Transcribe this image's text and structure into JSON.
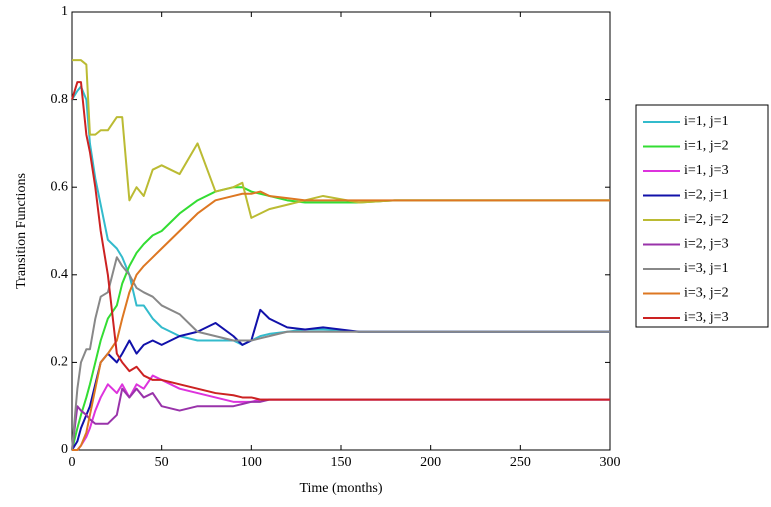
{
  "chart_data": {
    "type": "line",
    "xlabel": "Time (months)",
    "ylabel": "Transition Functions",
    "x": [
      0,
      3,
      5,
      8,
      10,
      13,
      16,
      20,
      25,
      28,
      32,
      36,
      40,
      45,
      50,
      60,
      70,
      80,
      90,
      95,
      100,
      105,
      110,
      120,
      130,
      140,
      160,
      180,
      200,
      250,
      300
    ],
    "series": [
      {
        "name": "i=1, j=1",
        "color": "#33bbcc",
        "values": [
          0.8,
          0.82,
          0.83,
          0.8,
          0.7,
          0.62,
          0.56,
          0.48,
          0.46,
          0.44,
          0.4,
          0.33,
          0.33,
          0.3,
          0.28,
          0.26,
          0.25,
          0.25,
          0.25,
          0.24,
          0.25,
          0.26,
          0.265,
          0.27,
          0.275,
          0.275,
          0.27,
          0.27,
          0.27,
          0.27,
          0.27
        ]
      },
      {
        "name": "i=1, j=2",
        "color": "#33dd33",
        "values": [
          0,
          0.05,
          0.08,
          0.12,
          0.15,
          0.2,
          0.25,
          0.3,
          0.33,
          0.38,
          0.42,
          0.45,
          0.47,
          0.49,
          0.5,
          0.54,
          0.57,
          0.59,
          0.6,
          0.6,
          0.59,
          0.585,
          0.58,
          0.57,
          0.565,
          0.565,
          0.565,
          0.57,
          0.57,
          0.57,
          0.57
        ]
      },
      {
        "name": "i=1, j=3",
        "color": "#dd33dd",
        "values": [
          0,
          0,
          0.01,
          0.03,
          0.05,
          0.09,
          0.12,
          0.15,
          0.13,
          0.15,
          0.12,
          0.15,
          0.14,
          0.17,
          0.16,
          0.14,
          0.13,
          0.12,
          0.11,
          0.11,
          0.11,
          0.115,
          0.115,
          0.115,
          0.115,
          0.115,
          0.115,
          0.115,
          0.115,
          0.115,
          0.115
        ]
      },
      {
        "name": "i=2, j=1",
        "color": "#1111aa",
        "values": [
          0,
          0.02,
          0.05,
          0.08,
          0.1,
          0.15,
          0.2,
          0.22,
          0.2,
          0.22,
          0.25,
          0.22,
          0.24,
          0.25,
          0.24,
          0.26,
          0.27,
          0.29,
          0.26,
          0.24,
          0.25,
          0.32,
          0.3,
          0.28,
          0.275,
          0.28,
          0.27,
          0.27,
          0.27,
          0.27,
          0.27
        ]
      },
      {
        "name": "i=2, j=2",
        "color": "#bbbb33",
        "values": [
          0.89,
          0.89,
          0.89,
          0.88,
          0.72,
          0.72,
          0.73,
          0.73,
          0.76,
          0.76,
          0.57,
          0.6,
          0.58,
          0.64,
          0.65,
          0.63,
          0.7,
          0.59,
          0.6,
          0.61,
          0.53,
          0.54,
          0.55,
          0.56,
          0.57,
          0.58,
          0.565,
          0.57,
          0.57,
          0.57,
          0.57
        ]
      },
      {
        "name": "i=2, j=3",
        "color": "#9933aa",
        "values": [
          0,
          0.1,
          0.09,
          0.08,
          0.07,
          0.06,
          0.06,
          0.06,
          0.08,
          0.14,
          0.12,
          0.14,
          0.12,
          0.13,
          0.1,
          0.09,
          0.1,
          0.1,
          0.1,
          0.105,
          0.11,
          0.11,
          0.115,
          0.115,
          0.115,
          0.115,
          0.115,
          0.115,
          0.115,
          0.115,
          0.115
        ]
      },
      {
        "name": "i=3, j=1",
        "color": "#888888",
        "values": [
          0,
          0.14,
          0.2,
          0.23,
          0.23,
          0.3,
          0.35,
          0.36,
          0.44,
          0.42,
          0.4,
          0.37,
          0.36,
          0.35,
          0.33,
          0.31,
          0.27,
          0.26,
          0.25,
          0.25,
          0.25,
          0.255,
          0.26,
          0.27,
          0.27,
          0.27,
          0.27,
          0.27,
          0.27,
          0.27,
          0.27
        ]
      },
      {
        "name": "i=3, j=2",
        "color": "#dd7722",
        "values": [
          0,
          0,
          0.01,
          0.04,
          0.08,
          0.14,
          0.2,
          0.22,
          0.25,
          0.3,
          0.36,
          0.4,
          0.42,
          0.44,
          0.46,
          0.5,
          0.54,
          0.57,
          0.58,
          0.585,
          0.585,
          0.59,
          0.58,
          0.575,
          0.57,
          0.57,
          0.57,
          0.57,
          0.57,
          0.57,
          0.57
        ]
      },
      {
        "name": "i=3, j=3",
        "color": "#cc2222",
        "values": [
          0.8,
          0.84,
          0.84,
          0.72,
          0.68,
          0.6,
          0.5,
          0.4,
          0.22,
          0.2,
          0.18,
          0.19,
          0.17,
          0.16,
          0.16,
          0.15,
          0.14,
          0.13,
          0.125,
          0.12,
          0.12,
          0.115,
          0.115,
          0.115,
          0.115,
          0.115,
          0.115,
          0.115,
          0.115,
          0.115,
          0.115
        ]
      }
    ],
    "xlim": [
      0,
      300
    ],
    "xticks": [
      0,
      50,
      100,
      150,
      200,
      250,
      300
    ],
    "ylim": [
      0,
      1
    ],
    "yticks": [
      0,
      0.2,
      0.4,
      0.6,
      0.8,
      1
    ],
    "grid": false,
    "legend": "outside-right"
  }
}
